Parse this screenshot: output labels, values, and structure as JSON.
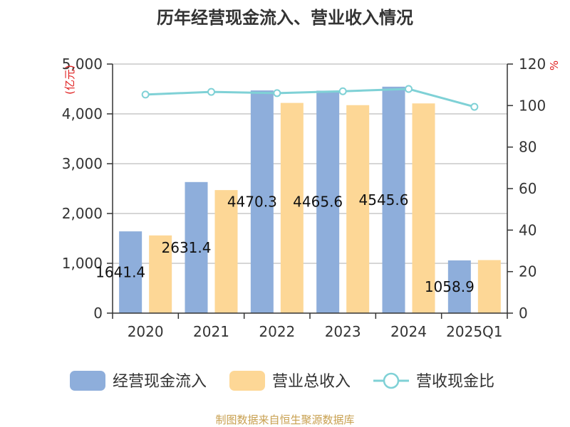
{
  "chart_data": {
    "type": "bar",
    "title": "历年经营现金流入、营业收入情况",
    "categories": [
      "2020",
      "2021",
      "2022",
      "2023",
      "2024",
      "2025Q1"
    ],
    "series": [
      {
        "name": "经营现金流入",
        "kind": "bar",
        "axis": "left",
        "color": "#8eaedb",
        "values": [
          1641.4,
          2631.4,
          4470.3,
          4465.6,
          4545.6,
          1058.9
        ]
      },
      {
        "name": "营业总收入",
        "kind": "bar",
        "axis": "left",
        "color": "#fdd796",
        "values": [
          1560,
          2470,
          4220,
          4175,
          4210,
          1065
        ]
      },
      {
        "name": "营收现金比",
        "kind": "line",
        "axis": "right",
        "color": "#7fd1d6",
        "values": [
          105.3,
          106.6,
          106.0,
          106.9,
          108.0,
          99.4
        ]
      }
    ],
    "data_labels": [
      "1641.4",
      "2631.4",
      "4470.3",
      "4465.6",
      "4545.6",
      "1058.9"
    ],
    "y_left": {
      "unit": "(亿元)",
      "ylim": [
        0,
        5000
      ],
      "ticks": [
        "5,000",
        "4,000",
        "3,000",
        "2,000",
        "1,000",
        "0"
      ]
    },
    "y_right": {
      "unit": "%",
      "ylim": [
        0,
        120
      ],
      "ticks": [
        "120",
        "100",
        "80",
        "60",
        "40",
        "20",
        "0"
      ]
    },
    "grid": true,
    "legend_position": "bottom"
  },
  "footer": "制图数据来自恒生聚源数据库"
}
